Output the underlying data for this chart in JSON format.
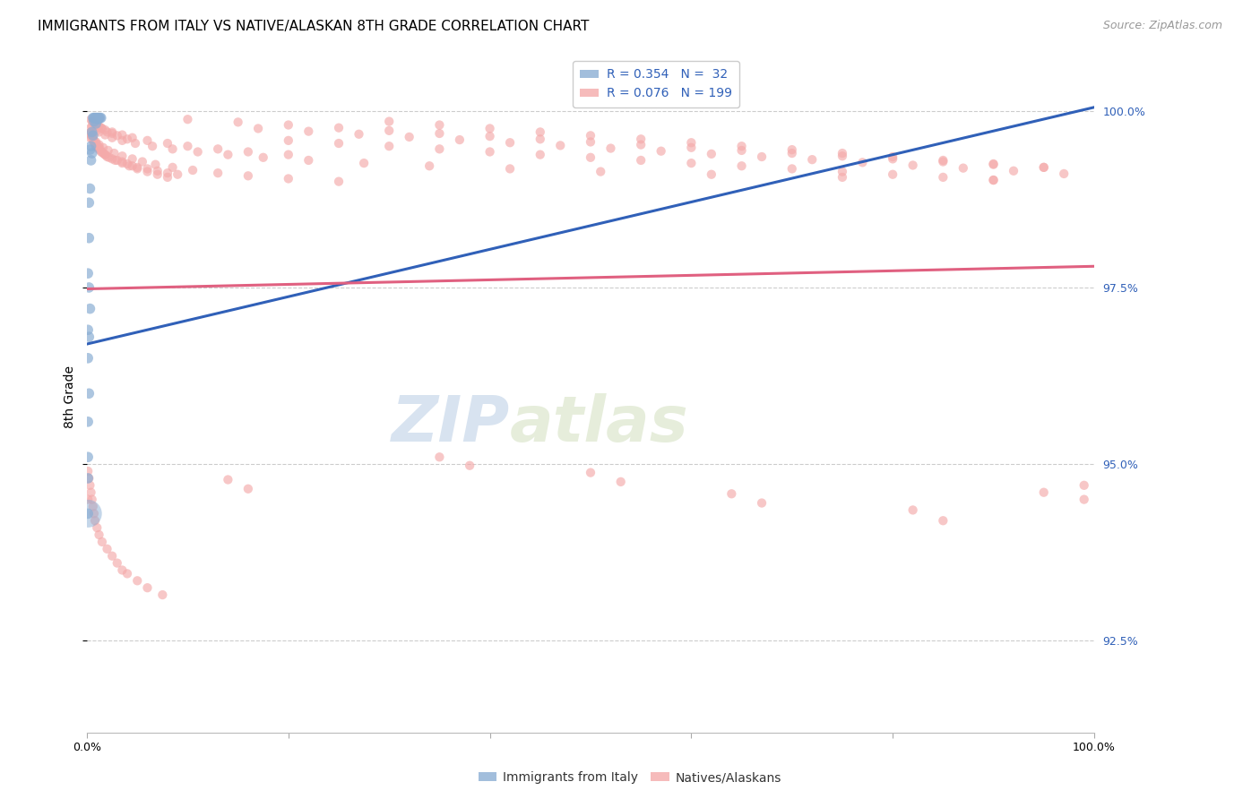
{
  "title": "IMMIGRANTS FROM ITALY VS NATIVE/ALASKAN 8TH GRADE CORRELATION CHART",
  "source": "Source: ZipAtlas.com",
  "ylabel": "8th Grade",
  "ylabel_right_labels": [
    "100.0%",
    "97.5%",
    "95.0%",
    "92.5%"
  ],
  "ylabel_right_positions": [
    1.0,
    0.975,
    0.95,
    0.925
  ],
  "xmin": 0.0,
  "xmax": 1.0,
  "ymin": 0.912,
  "ymax": 1.007,
  "legend_blue_r": "R = 0.354",
  "legend_blue_n": "N =  32",
  "legend_pink_r": "R = 0.076",
  "legend_pink_n": "N = 199",
  "blue_color": "#8BAED4",
  "pink_color": "#F4AAAA",
  "blue_line_color": "#3060B8",
  "pink_line_color": "#E06080",
  "watermark_zip": "ZIP",
  "watermark_atlas": "atlas",
  "grid_color": "#cccccc",
  "background_color": "#ffffff",
  "blue_line_x": [
    0.0,
    1.0
  ],
  "blue_line_y": [
    0.967,
    1.0005
  ],
  "pink_line_x": [
    0.0,
    1.0
  ],
  "pink_line_y": [
    0.9748,
    0.978
  ],
  "blue_scatter": [
    [
      0.006,
      0.999
    ],
    [
      0.007,
      0.999
    ],
    [
      0.008,
      0.999
    ],
    [
      0.009,
      0.999
    ],
    [
      0.01,
      0.999
    ],
    [
      0.011,
      0.999
    ],
    [
      0.012,
      0.999
    ],
    [
      0.013,
      0.999
    ],
    [
      0.014,
      0.999
    ],
    [
      0.007,
      0.9985
    ],
    [
      0.009,
      0.9982
    ],
    [
      0.011,
      0.9988
    ],
    [
      0.005,
      0.997
    ],
    [
      0.006,
      0.9965
    ],
    [
      0.005,
      0.994
    ],
    [
      0.004,
      0.993
    ],
    [
      0.003,
      0.9945
    ],
    [
      0.004,
      0.995
    ],
    [
      0.003,
      0.989
    ],
    [
      0.002,
      0.987
    ],
    [
      0.002,
      0.982
    ],
    [
      0.001,
      0.977
    ],
    [
      0.002,
      0.975
    ],
    [
      0.003,
      0.972
    ],
    [
      0.001,
      0.969
    ],
    [
      0.002,
      0.968
    ],
    [
      0.001,
      0.965
    ],
    [
      0.002,
      0.96
    ],
    [
      0.001,
      0.956
    ],
    [
      0.001,
      0.951
    ],
    [
      0.001,
      0.948
    ],
    [
      0.001,
      0.943
    ]
  ],
  "blue_scatter_sizes": [
    200,
    150,
    180,
    160,
    170,
    140,
    180,
    160,
    150,
    130,
    120,
    130,
    100,
    90,
    100,
    90,
    80,
    80,
    70,
    60,
    60,
    50,
    50,
    50,
    40,
    40,
    40,
    35,
    35,
    30,
    400,
    80
  ],
  "pink_scatter": [
    [
      0.005,
      0.9985
    ],
    [
      0.008,
      0.998
    ],
    [
      0.012,
      0.9978
    ],
    [
      0.01,
      0.9972
    ],
    [
      0.015,
      0.9975
    ],
    [
      0.02,
      0.997
    ],
    [
      0.025,
      0.9968
    ],
    [
      0.03,
      0.9965
    ],
    [
      0.04,
      0.996
    ],
    [
      0.003,
      0.9962
    ],
    [
      0.006,
      0.9958
    ],
    [
      0.007,
      0.9955
    ],
    [
      0.008,
      0.9952
    ],
    [
      0.009,
      0.995
    ],
    [
      0.01,
      0.9948
    ],
    [
      0.012,
      0.9945
    ],
    [
      0.014,
      0.9942
    ],
    [
      0.016,
      0.994
    ],
    [
      0.018,
      0.9938
    ],
    [
      0.02,
      0.9935
    ],
    [
      0.025,
      0.9932
    ],
    [
      0.03,
      0.993
    ],
    [
      0.035,
      0.9928
    ],
    [
      0.04,
      0.9925
    ],
    [
      0.045,
      0.9922
    ],
    [
      0.05,
      0.992
    ],
    [
      0.06,
      0.9918
    ],
    [
      0.07,
      0.9915
    ],
    [
      0.08,
      0.9912
    ],
    [
      0.09,
      0.991
    ],
    [
      0.003,
      0.9975
    ],
    [
      0.004,
      0.997
    ],
    [
      0.005,
      0.9965
    ],
    [
      0.006,
      0.9962
    ],
    [
      0.007,
      0.9958
    ],
    [
      0.009,
      0.9954
    ],
    [
      0.011,
      0.995
    ],
    [
      0.013,
      0.9946
    ],
    [
      0.015,
      0.9942
    ],
    [
      0.018,
      0.9938
    ],
    [
      0.022,
      0.9934
    ],
    [
      0.028,
      0.993
    ],
    [
      0.035,
      0.9926
    ],
    [
      0.042,
      0.9922
    ],
    [
      0.05,
      0.9918
    ],
    [
      0.06,
      0.9914
    ],
    [
      0.07,
      0.991
    ],
    [
      0.08,
      0.9906
    ],
    [
      0.004,
      0.9988
    ],
    [
      0.006,
      0.9985
    ],
    [
      0.008,
      0.9982
    ],
    [
      0.01,
      0.9979
    ],
    [
      0.014,
      0.9976
    ],
    [
      0.018,
      0.9973
    ],
    [
      0.025,
      0.997
    ],
    [
      0.035,
      0.9966
    ],
    [
      0.045,
      0.9962
    ],
    [
      0.06,
      0.9958
    ],
    [
      0.08,
      0.9954
    ],
    [
      0.1,
      0.995
    ],
    [
      0.13,
      0.9946
    ],
    [
      0.16,
      0.9942
    ],
    [
      0.2,
      0.9938
    ],
    [
      0.002,
      0.9968
    ],
    [
      0.004,
      0.9964
    ],
    [
      0.006,
      0.996
    ],
    [
      0.009,
      0.9956
    ],
    [
      0.012,
      0.9952
    ],
    [
      0.016,
      0.9948
    ],
    [
      0.021,
      0.9944
    ],
    [
      0.027,
      0.994
    ],
    [
      0.035,
      0.9936
    ],
    [
      0.045,
      0.9932
    ],
    [
      0.055,
      0.9928
    ],
    [
      0.068,
      0.9924
    ],
    [
      0.085,
      0.992
    ],
    [
      0.105,
      0.9916
    ],
    [
      0.13,
      0.9912
    ],
    [
      0.16,
      0.9908
    ],
    [
      0.2,
      0.9904
    ],
    [
      0.25,
      0.99
    ],
    [
      0.005,
      0.9978
    ],
    [
      0.008,
      0.9974
    ],
    [
      0.012,
      0.997
    ],
    [
      0.018,
      0.9966
    ],
    [
      0.025,
      0.9962
    ],
    [
      0.035,
      0.9958
    ],
    [
      0.048,
      0.9954
    ],
    [
      0.065,
      0.995
    ],
    [
      0.085,
      0.9946
    ],
    [
      0.11,
      0.9942
    ],
    [
      0.14,
      0.9938
    ],
    [
      0.175,
      0.9934
    ],
    [
      0.22,
      0.993
    ],
    [
      0.275,
      0.9926
    ],
    [
      0.34,
      0.9922
    ],
    [
      0.42,
      0.9918
    ],
    [
      0.51,
      0.9914
    ],
    [
      0.62,
      0.991
    ],
    [
      0.75,
      0.9906
    ],
    [
      0.9,
      0.9902
    ],
    [
      0.1,
      0.9988
    ],
    [
      0.15,
      0.9984
    ],
    [
      0.2,
      0.998
    ],
    [
      0.25,
      0.9976
    ],
    [
      0.3,
      0.9972
    ],
    [
      0.35,
      0.9968
    ],
    [
      0.4,
      0.9964
    ],
    [
      0.45,
      0.996
    ],
    [
      0.5,
      0.9956
    ],
    [
      0.55,
      0.9952
    ],
    [
      0.6,
      0.9948
    ],
    [
      0.65,
      0.9944
    ],
    [
      0.7,
      0.994
    ],
    [
      0.75,
      0.9936
    ],
    [
      0.8,
      0.9932
    ],
    [
      0.85,
      0.9928
    ],
    [
      0.9,
      0.9924
    ],
    [
      0.95,
      0.992
    ],
    [
      0.3,
      0.9985
    ],
    [
      0.35,
      0.998
    ],
    [
      0.4,
      0.9975
    ],
    [
      0.45,
      0.997
    ],
    [
      0.5,
      0.9965
    ],
    [
      0.55,
      0.996
    ],
    [
      0.6,
      0.9955
    ],
    [
      0.65,
      0.995
    ],
    [
      0.7,
      0.9945
    ],
    [
      0.75,
      0.994
    ],
    [
      0.8,
      0.9935
    ],
    [
      0.85,
      0.993
    ],
    [
      0.9,
      0.9925
    ],
    [
      0.95,
      0.992
    ],
    [
      0.2,
      0.9958
    ],
    [
      0.25,
      0.9954
    ],
    [
      0.3,
      0.995
    ],
    [
      0.35,
      0.9946
    ],
    [
      0.4,
      0.9942
    ],
    [
      0.45,
      0.9938
    ],
    [
      0.5,
      0.9934
    ],
    [
      0.55,
      0.993
    ],
    [
      0.6,
      0.9926
    ],
    [
      0.65,
      0.9922
    ],
    [
      0.7,
      0.9918
    ],
    [
      0.75,
      0.9914
    ],
    [
      0.8,
      0.991
    ],
    [
      0.85,
      0.9906
    ],
    [
      0.9,
      0.9902
    ],
    [
      0.17,
      0.9975
    ],
    [
      0.22,
      0.9971
    ],
    [
      0.27,
      0.9967
    ],
    [
      0.32,
      0.9963
    ],
    [
      0.37,
      0.9959
    ],
    [
      0.42,
      0.9955
    ],
    [
      0.47,
      0.9951
    ],
    [
      0.52,
      0.9947
    ],
    [
      0.57,
      0.9943
    ],
    [
      0.62,
      0.9939
    ],
    [
      0.67,
      0.9935
    ],
    [
      0.72,
      0.9931
    ],
    [
      0.77,
      0.9927
    ],
    [
      0.82,
      0.9923
    ],
    [
      0.87,
      0.9919
    ],
    [
      0.92,
      0.9915
    ],
    [
      0.97,
      0.9911
    ],
    [
      0.5,
      0.9488
    ],
    [
      0.53,
      0.9475
    ],
    [
      0.14,
      0.9478
    ],
    [
      0.16,
      0.9465
    ],
    [
      0.35,
      0.951
    ],
    [
      0.38,
      0.9498
    ],
    [
      0.64,
      0.9458
    ],
    [
      0.67,
      0.9445
    ],
    [
      0.82,
      0.9435
    ],
    [
      0.85,
      0.942
    ],
    [
      0.95,
      0.946
    ],
    [
      0.002,
      0.948
    ],
    [
      0.003,
      0.947
    ],
    [
      0.004,
      0.946
    ],
    [
      0.005,
      0.945
    ],
    [
      0.006,
      0.944
    ],
    [
      0.007,
      0.943
    ],
    [
      0.008,
      0.942
    ],
    [
      0.01,
      0.941
    ],
    [
      0.012,
      0.94
    ],
    [
      0.015,
      0.939
    ],
    [
      0.02,
      0.938
    ],
    [
      0.025,
      0.937
    ],
    [
      0.03,
      0.936
    ],
    [
      0.035,
      0.935
    ],
    [
      0.04,
      0.9345
    ],
    [
      0.05,
      0.9335
    ],
    [
      0.06,
      0.9325
    ],
    [
      0.075,
      0.9315
    ],
    [
      0.001,
      0.949
    ],
    [
      0.001,
      0.945
    ],
    [
      0.99,
      0.947
    ],
    [
      0.99,
      0.945
    ]
  ]
}
